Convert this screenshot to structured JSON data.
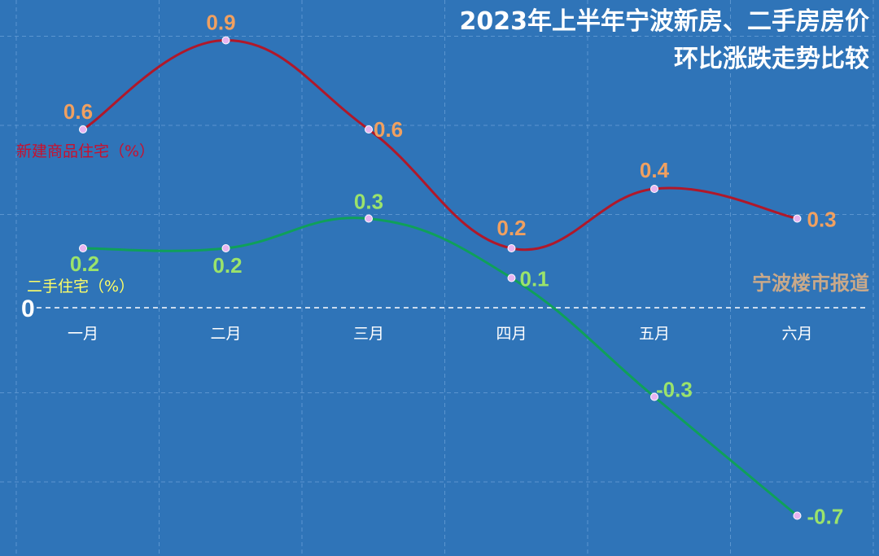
{
  "chart_data": {
    "type": "line",
    "title_lines": [
      "2023年上半年宁波新房、二手房房价",
      "环比涨跌走势比较"
    ],
    "categories": [
      "一月",
      "二月",
      "三月",
      "四月",
      "五月",
      "六月"
    ],
    "zero_label": "0",
    "ylim": [
      -0.8,
      1.0
    ],
    "grid": true,
    "series": [
      {
        "name": "新建商品住宅（%）",
        "values": [
          0.6,
          0.9,
          0.6,
          0.2,
          0.4,
          0.3
        ],
        "labels": [
          "0.6",
          "0.9",
          "0.6",
          "0.2",
          "0.4",
          "0.3"
        ],
        "color": "#b0182a",
        "label_color": "#f0a060"
      },
      {
        "name": "二手住宅（%）",
        "values": [
          0.2,
          0.2,
          0.3,
          0.1,
          -0.3,
          -0.7
        ],
        "labels": [
          "0.2",
          "0.2",
          "0.3",
          "0.1",
          "-0.3",
          "-0.7"
        ],
        "color": "#0fa05a",
        "label_color": "#9be36b"
      }
    ]
  },
  "watermark": "宁波楼市报道",
  "colors": {
    "background": "#2f74b8",
    "grid": "#5b95cf",
    "marker": "#e8b4f0"
  }
}
